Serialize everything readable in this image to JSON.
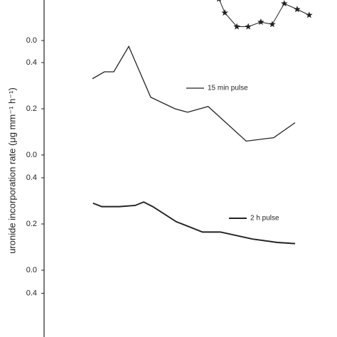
{
  "y_label": "uronide incorporation rate (μg mm⁻¹ h⁻¹)",
  "chart_data": [
    {
      "type": "line",
      "ylim": [
        0,
        0.5
      ],
      "xlim": [
        0,
        100
      ],
      "yticks": [
        {
          "value": 0,
          "label": "0.0"
        }
      ],
      "series": [
        {
          "color": "#222222",
          "marker": "star",
          "x": [
            59.7,
            61.7,
            65.8,
            69.7,
            74,
            77.9,
            82,
            86.4,
            90.5
          ],
          "values": [
            0.18,
            0.12,
            0.06,
            0.06,
            0.08,
            0.07,
            0.16,
            0.135,
            0.11
          ]
        }
      ]
    },
    {
      "type": "line",
      "ylim": [
        0,
        0.5
      ],
      "xlim": [
        0,
        100
      ],
      "yticks": [
        {
          "value": 0,
          "label": "0.0"
        },
        {
          "value": 0.2,
          "label": "0.2"
        },
        {
          "value": 0.4,
          "label": "0.4"
        }
      ],
      "series": [
        {
          "name": "15 min pulse",
          "color": "#222222",
          "width": 1.3,
          "x": [
            16.5,
            20.6,
            23.8,
            28.9,
            36.4,
            44.7,
            49,
            56,
            69,
            78.4,
            85.7
          ],
          "values": [
            0.33,
            0.36,
            0.36,
            0.47,
            0.25,
            0.2,
            0.185,
            0.21,
            0.06,
            0.075,
            0.14
          ]
        }
      ]
    },
    {
      "type": "line",
      "ylim": [
        0,
        0.5
      ],
      "xlim": [
        0,
        100
      ],
      "yticks": [
        {
          "value": 0,
          "label": "0.0"
        },
        {
          "value": 0.2,
          "label": "0.2"
        },
        {
          "value": 0.4,
          "label": "0.4"
        }
      ],
      "series": [
        {
          "name": "2 h pulse",
          "color": "#222222",
          "width": 1.9,
          "x": [
            16.7,
            19.7,
            25.7,
            31.1,
            34,
            37.1,
            45.1,
            54.1,
            60.2,
            71.1,
            79.6,
            85.7
          ],
          "values": [
            0.29,
            0.275,
            0.275,
            0.28,
            0.295,
            0.275,
            0.21,
            0.165,
            0.165,
            0.135,
            0.12,
            0.115
          ]
        }
      ]
    },
    {
      "type": "line",
      "ylim": [
        0,
        0.5
      ],
      "xlim": [
        0,
        100
      ],
      "yticks": [
        {
          "value": 0.4,
          "label": "0.4"
        }
      ],
      "series": []
    }
  ]
}
